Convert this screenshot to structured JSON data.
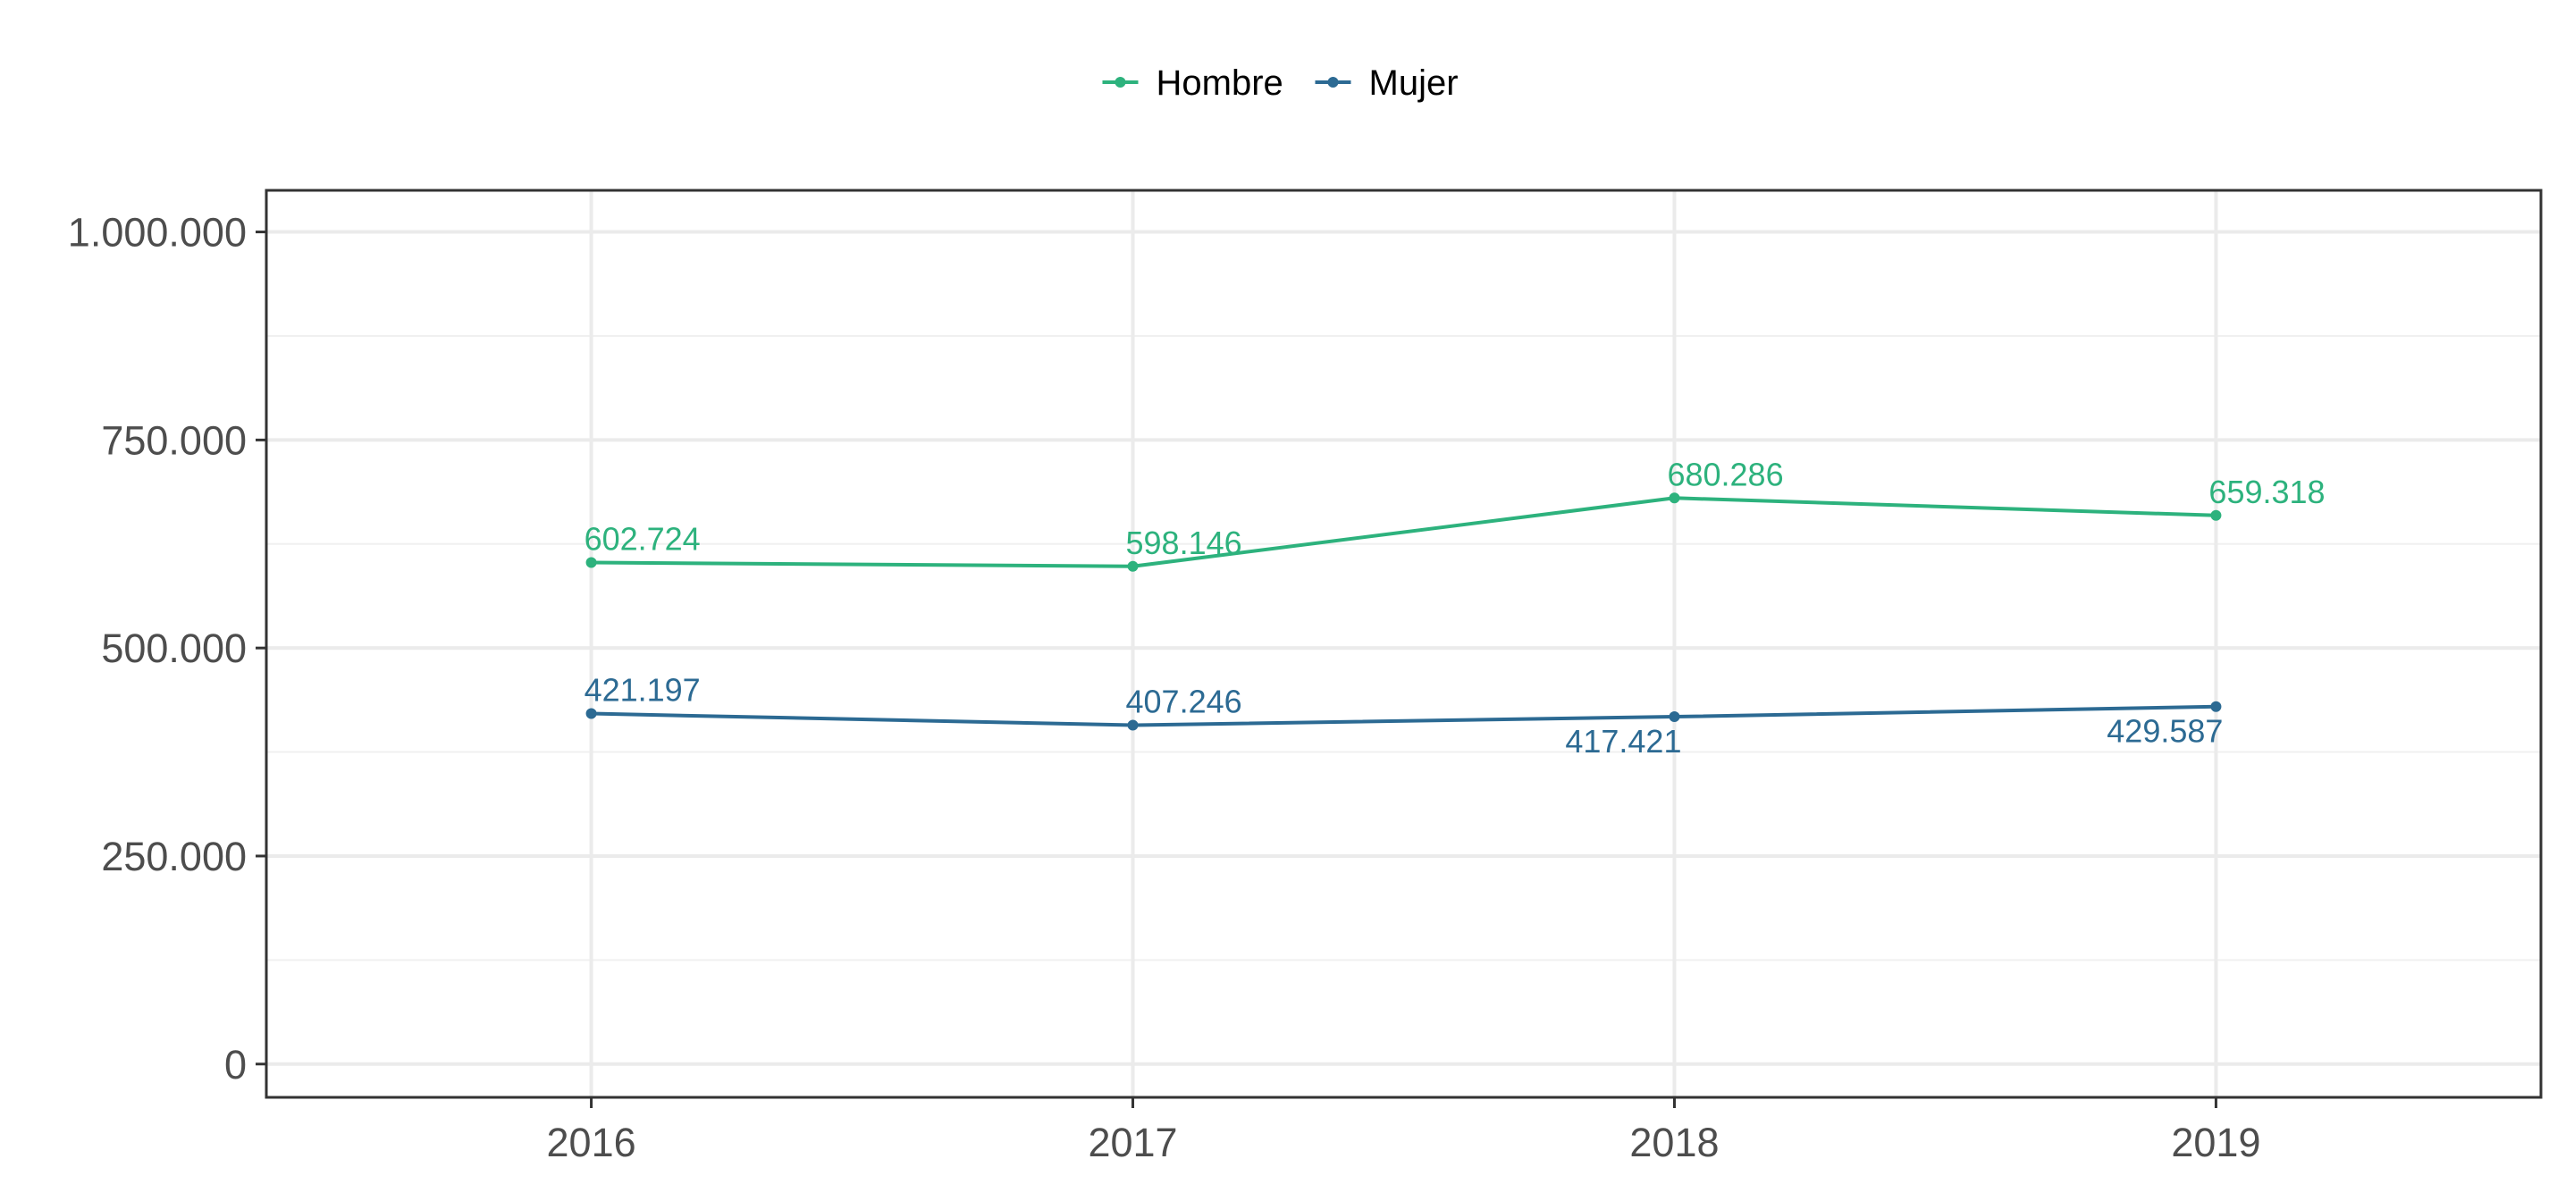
{
  "chart_data": {
    "type": "line",
    "title": "",
    "xlabel": "",
    "ylabel": "",
    "x": [
      "2016",
      "2017",
      "2018",
      "2019"
    ],
    "ylim": [
      -40000,
      1050000
    ],
    "yticks": [
      {
        "value": 0,
        "label": "0"
      },
      {
        "value": 250000,
        "label": "250.000"
      },
      {
        "value": 500000,
        "label": "500.000"
      },
      {
        "value": 750000,
        "label": "750.000"
      },
      {
        "value": 1000000,
        "label": "1.000.000"
      }
    ],
    "grid": true,
    "legend_position": "top",
    "series": [
      {
        "name": "Hombre",
        "color": "#2db27d",
        "values": [
          602724,
          598146,
          680286,
          659318
        ],
        "labels": [
          "602.724",
          "598.146",
          "680.286",
          "659.318"
        ],
        "label_side": [
          "above",
          "above",
          "above",
          "above"
        ]
      },
      {
        "name": "Mujer",
        "color": "#2c6a93",
        "values": [
          421197,
          407246,
          417421,
          429587
        ],
        "labels": [
          "421.197",
          "407.246",
          "417.421",
          "429.587"
        ],
        "label_side": [
          "above",
          "above",
          "below",
          "below"
        ]
      }
    ]
  }
}
